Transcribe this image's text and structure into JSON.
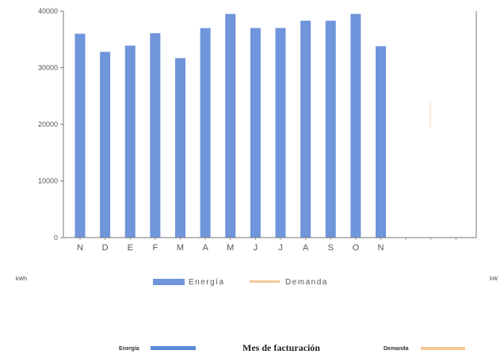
{
  "chart_data": {
    "type": "bar",
    "categories": [
      "N",
      "D",
      "E",
      "F",
      "M",
      "A",
      "M",
      "J",
      "J",
      "A",
      "S",
      "O",
      "N",
      "",
      "",
      ""
    ],
    "series": [
      {
        "name": "Energía",
        "color": "#6f95db",
        "values": [
          36000,
          32800,
          33900,
          36100,
          31700,
          37000,
          39500,
          37000,
          37000,
          38300,
          38300,
          39500,
          33800,
          null,
          null,
          null
        ]
      },
      {
        "name": "Demanda",
        "color": "#f5c896",
        "values": [
          null,
          null,
          null,
          null,
          null,
          null,
          null,
          null,
          null,
          null,
          null,
          null,
          null,
          null,
          null,
          null
        ]
      }
    ],
    "yticks": [
      0,
      10000,
      20000,
      30000,
      40000
    ],
    "ylim": [
      0,
      40000
    ],
    "ylabel_left": "kWh",
    "ylabel_right": "kW",
    "legend": [
      "Energía",
      "Demanda"
    ],
    "legend_position": "bottom",
    "grid": false
  },
  "bottom_legend": {
    "energia_label": "Energía",
    "title": "Mes de facturación",
    "demanda_label": "Demanda"
  }
}
